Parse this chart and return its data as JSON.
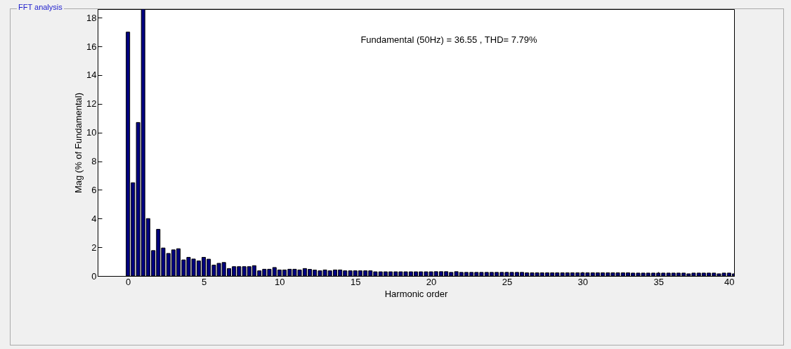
{
  "chart_data": {
    "type": "bar",
    "title": "FFT analysis",
    "xlabel": "Harmonic order",
    "ylabel": "Mag (% of Fundamental)",
    "annotations": [
      "Fundamental (50Hz) = 36.55 , THD= 7.79%"
    ],
    "x": [
      0,
      0.33,
      0.67,
      1,
      1.33,
      1.67,
      2,
      2.33,
      2.67,
      3,
      3.33,
      3.67,
      4,
      4.33,
      4.67,
      5,
      5.33,
      5.67,
      6,
      6.33,
      6.67,
      7,
      7.33,
      7.67,
      8,
      8.33,
      8.67,
      9,
      9.33,
      9.67,
      10,
      10.33,
      10.67,
      11,
      11.33,
      11.67,
      12,
      12.33,
      12.67,
      13,
      13.33,
      13.67,
      14,
      14.33,
      14.67,
      15,
      15.33,
      15.67,
      16,
      16.33,
      16.67,
      17,
      17.33,
      17.67,
      18,
      18.33,
      18.67,
      19,
      19.33,
      19.67,
      20,
      20.33,
      20.67,
      21,
      21.33,
      21.67,
      22,
      22.33,
      22.67,
      23,
      23.33,
      23.67,
      24,
      24.33,
      24.67,
      25,
      25.33,
      25.67,
      26,
      26.33,
      26.67,
      27,
      27.33,
      27.67,
      28,
      28.33,
      28.67,
      29,
      29.33,
      29.67,
      30,
      30.33,
      30.67,
      31,
      31.33,
      31.67,
      32,
      32.33,
      32.67,
      33,
      33.33,
      33.67,
      34,
      34.33,
      34.67,
      35,
      35.33,
      35.67,
      36,
      36.33,
      36.67,
      37,
      37.33,
      37.67,
      38,
      38.33,
      38.67,
      39,
      39.33,
      39.67,
      40
    ],
    "values": [
      17.0,
      6.5,
      10.7,
      18.6,
      4.0,
      1.77,
      3.25,
      1.95,
      1.57,
      1.82,
      1.9,
      1.12,
      1.3,
      1.18,
      1.05,
      1.3,
      1.17,
      0.76,
      0.88,
      0.94,
      0.52,
      0.65,
      0.65,
      0.65,
      0.65,
      0.72,
      0.36,
      0.47,
      0.47,
      0.59,
      0.42,
      0.42,
      0.47,
      0.47,
      0.42,
      0.52,
      0.46,
      0.41,
      0.36,
      0.42,
      0.36,
      0.42,
      0.42,
      0.36,
      0.36,
      0.36,
      0.36,
      0.36,
      0.36,
      0.29,
      0.29,
      0.29,
      0.29,
      0.29,
      0.29,
      0.29,
      0.29,
      0.29,
      0.29,
      0.29,
      0.29,
      0.3,
      0.3,
      0.3,
      0.25,
      0.3,
      0.25,
      0.25,
      0.25,
      0.25,
      0.25,
      0.25,
      0.25,
      0.25,
      0.25,
      0.25,
      0.25,
      0.25,
      0.25,
      0.22,
      0.22,
      0.22,
      0.22,
      0.22,
      0.22,
      0.22,
      0.22,
      0.22,
      0.22,
      0.22,
      0.22,
      0.22,
      0.22,
      0.22,
      0.22,
      0.22,
      0.22,
      0.22,
      0.22,
      0.22,
      0.2,
      0.2,
      0.2,
      0.2,
      0.2,
      0.2,
      0.2,
      0.2,
      0.2,
      0.2,
      0.2,
      0.15,
      0.2,
      0.2,
      0.2,
      0.2,
      0.2,
      0.15,
      0.2,
      0.2,
      0.15
    ],
    "color": "#000080",
    "xlim": [
      -2,
      40
    ],
    "ylim": [
      0,
      18.6
    ],
    "xticks": [
      0,
      5,
      10,
      15,
      20,
      25,
      30,
      35,
      40
    ],
    "yticks": [
      0,
      2,
      4,
      6,
      8,
      10,
      12,
      14,
      16,
      18
    ],
    "grid": false
  }
}
